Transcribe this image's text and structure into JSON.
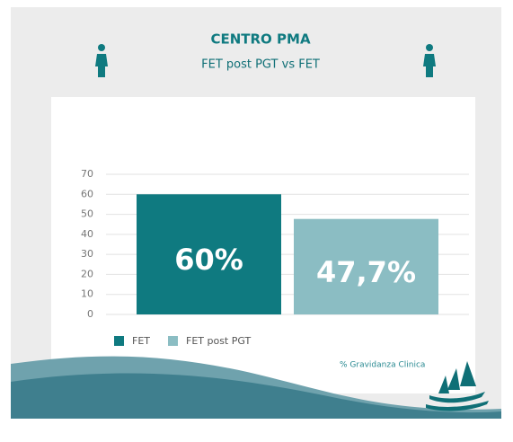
{
  "chart_data": {
    "type": "bar",
    "title": "CENTRO PMA",
    "subtitle": "FET post PGT vs FET",
    "categories": [
      null
    ],
    "series": [
      {
        "name": "FET",
        "color": "#0f7a80",
        "values": [
          60
        ],
        "value_labels": [
          "60%"
        ]
      },
      {
        "name": "FET post PGT",
        "color": "#8bbdc3",
        "values": [
          47.7
        ],
        "value_labels": [
          "47,7%"
        ]
      }
    ],
    "ylim": [
      0,
      70
    ],
    "yticks": [
      0,
      10,
      20,
      30,
      40,
      50,
      60,
      70
    ],
    "grid": true,
    "annotation": "% Gravidanza Clinica"
  }
}
